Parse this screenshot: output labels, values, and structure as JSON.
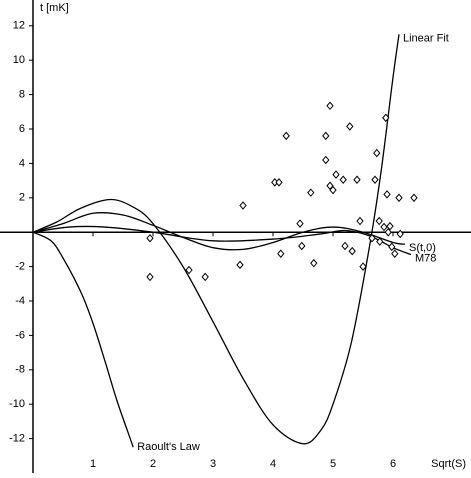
{
  "chart_data": {
    "type": "line",
    "x_label": "Sqrt(S)",
    "y_label": "t [mK]",
    "xlim": [
      -0.55,
      7.3
    ],
    "ylim": [
      -14,
      13.5
    ],
    "xticks": [
      1,
      2,
      3,
      4,
      5,
      6
    ],
    "yticks": [
      -12,
      -10,
      -8,
      -6,
      -4,
      -2,
      2,
      4,
      6,
      8,
      10,
      12
    ],
    "color": "#000000",
    "series": [
      {
        "name": "Linear Fit",
        "x": [
          0,
          0.4,
          0.8,
          1.3,
          1.7,
          2,
          2.5,
          3,
          3.5,
          4,
          4.5,
          4.8,
          5,
          5.3,
          5.6,
          5.8,
          6,
          6.1
        ],
        "values": [
          0,
          0.6,
          1.4,
          1.9,
          1.4,
          0.5,
          -2,
          -5.2,
          -8.5,
          -11.2,
          -12.3,
          -11.5,
          -10,
          -6.5,
          -1,
          3.5,
          9,
          11.5
        ]
      },
      {
        "name": "Raoult's Law",
        "x": [
          0,
          0.3,
          0.5,
          0.8,
          1,
          1.2,
          1.4,
          1.6,
          1.67
        ],
        "values": [
          0,
          -0.5,
          -1.5,
          -3.5,
          -5.3,
          -7.5,
          -9.8,
          -11.8,
          -12.5
        ]
      },
      {
        "name": "S(t,0)",
        "x": [
          0,
          0.5,
          1,
          1.5,
          2,
          2.5,
          3,
          3.5,
          4,
          4.5,
          5,
          5.5,
          6,
          6.2
        ],
        "values": [
          0,
          0.5,
          1.1,
          1,
          0.4,
          -0.3,
          -0.9,
          -1,
          -0.6,
          0,
          0.3,
          0,
          -0.6,
          -0.7
        ]
      },
      {
        "name": "M78",
        "x": [
          0,
          0.6,
          1.2,
          2,
          3,
          4,
          4.8,
          5.2,
          5.6,
          6,
          6.3
        ],
        "values": [
          0,
          0.3,
          0.3,
          0,
          -0.5,
          -0.4,
          -0.1,
          0.1,
          -0.2,
          -0.9,
          -1.3
        ]
      }
    ],
    "points": {
      "x": [
        1.95,
        1.95,
        2.6,
        2.87,
        3.45,
        3.5,
        4.03,
        4.1,
        4.13,
        4.22,
        4.45,
        4.48,
        4.63,
        4.68,
        4.88,
        4.88,
        4.95,
        4.95,
        5,
        5.05,
        5.17,
        5.2,
        5.28,
        5.32,
        5.4,
        5.45,
        5.5,
        5.65,
        5.7,
        5.73,
        5.77,
        5.78,
        5.85,
        5.88,
        5.9,
        5.92,
        5.98,
        6.03,
        6.1,
        6.35,
        6.12,
        5.95
      ],
      "values": [
        -0.35,
        -2.6,
        -2.2,
        -2.6,
        -1.9,
        1.55,
        2.9,
        2.9,
        -1.25,
        5.6,
        0.5,
        -0.8,
        2.3,
        -1.8,
        5.6,
        4.2,
        7.35,
        2.7,
        2.45,
        3.35,
        3.05,
        -0.8,
        6.15,
        -1.1,
        3.05,
        0.65,
        -2,
        -0.35,
        3.05,
        4.6,
        0.65,
        -0.55,
        0.3,
        6.65,
        2.2,
        0,
        -0.85,
        -1.25,
        2,
        2,
        -0.1,
        0.35
      ]
    }
  }
}
